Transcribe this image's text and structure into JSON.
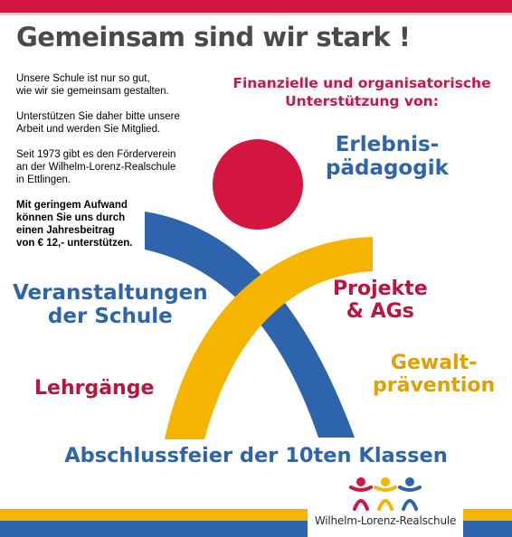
{
  "headline": "Gemeinsam sind wir stark !",
  "intro": {
    "p1_line1": "Unsere Schule ist nur so gut,",
    "p1_line2": "wie wir sie gemeinsam gestalten.",
    "p2_line1": "Unterstützen Sie daher bitte unsere",
    "p2_line2": "Arbeit und werden Sie Mitglied.",
    "p3_line1": "Seit 1973 gibt es den Förderverein",
    "p3_line2": "an der Wilhelm-Lorenz-Realschule",
    "p3_line3": "in Ettlingen.",
    "p4_line1": "Mit geringem Aufwand",
    "p4_line2": "können Sie uns durch",
    "p4_line3": "einen Jahresbeitrag",
    "p4_line4": "von € 12,- unterstützen."
  },
  "support_heading": {
    "line1": "Finanzielle und organisatorische",
    "line2": "Unterstützung von:"
  },
  "areas": {
    "erlebnis_line1": "Erlebnis-",
    "erlebnis_line2": "pädagogik",
    "veranstaltungen_line1": "Veranstaltungen",
    "veranstaltungen_line2": "der Schule",
    "projekte_line1": "Projekte",
    "projekte_line2": "& AGs",
    "gewalt_line1": "Gewalt-",
    "gewalt_line2": "prävention",
    "lehrgaenge": "Lehrgänge",
    "abschlussfeier": "Abschlussfeier der 10ten Klassen"
  },
  "logo": {
    "name": "Wilhelm-Lorenz-Realschule",
    "icon": "three-figures-icon"
  },
  "colors": {
    "red": "#d4153f",
    "blue": "#2e64ac",
    "yellow": "#f5b400",
    "grey": "#4a4a4a"
  }
}
